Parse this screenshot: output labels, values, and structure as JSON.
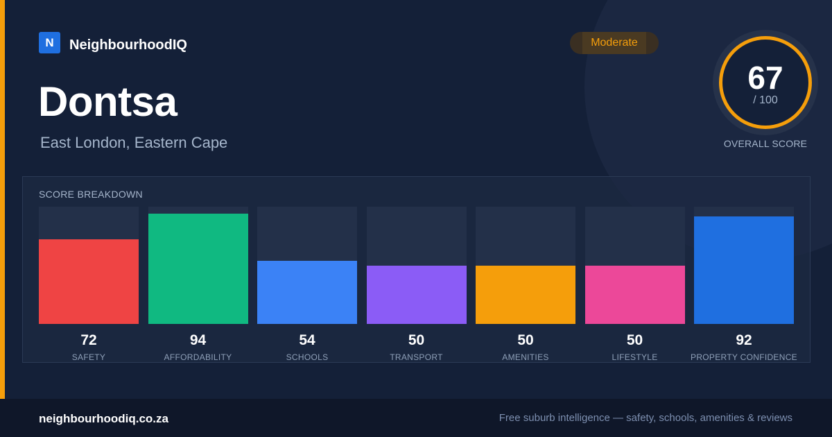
{
  "brand": {
    "logo_letter": "N",
    "name": "NeighbourhoodIQ"
  },
  "suburb": {
    "name": "Dontsa",
    "region": "East London, Eastern Cape"
  },
  "rating": {
    "label": "Moderate",
    "color": "#f59e0b"
  },
  "overall_score": {
    "value": "67",
    "max": "/ 100",
    "caption": "OVERALL SCORE"
  },
  "breakdown": {
    "title": "SCORE BREAKDOWN",
    "scale_max": 100,
    "items": [
      {
        "value": "72",
        "label": "SAFETY",
        "color": "#ef4444"
      },
      {
        "value": "94",
        "label": "AFFORDABILITY",
        "color": "#10b981"
      },
      {
        "value": "54",
        "label": "SCHOOLS",
        "color": "#3b82f6"
      },
      {
        "value": "50",
        "label": "TRANSPORT",
        "color": "#8b5cf6"
      },
      {
        "value": "50",
        "label": "AMENITIES",
        "color": "#f59e0b"
      },
      {
        "value": "50",
        "label": "LIFESTYLE",
        "color": "#ec4899"
      },
      {
        "value": "92",
        "label": "PROPERTY CONFIDENCE",
        "color": "#1f6fe0"
      }
    ]
  },
  "footer": {
    "domain": "neighbourhoodiq.co.za",
    "tagline": "Free suburb intelligence — safety, schools, amenities & reviews"
  }
}
